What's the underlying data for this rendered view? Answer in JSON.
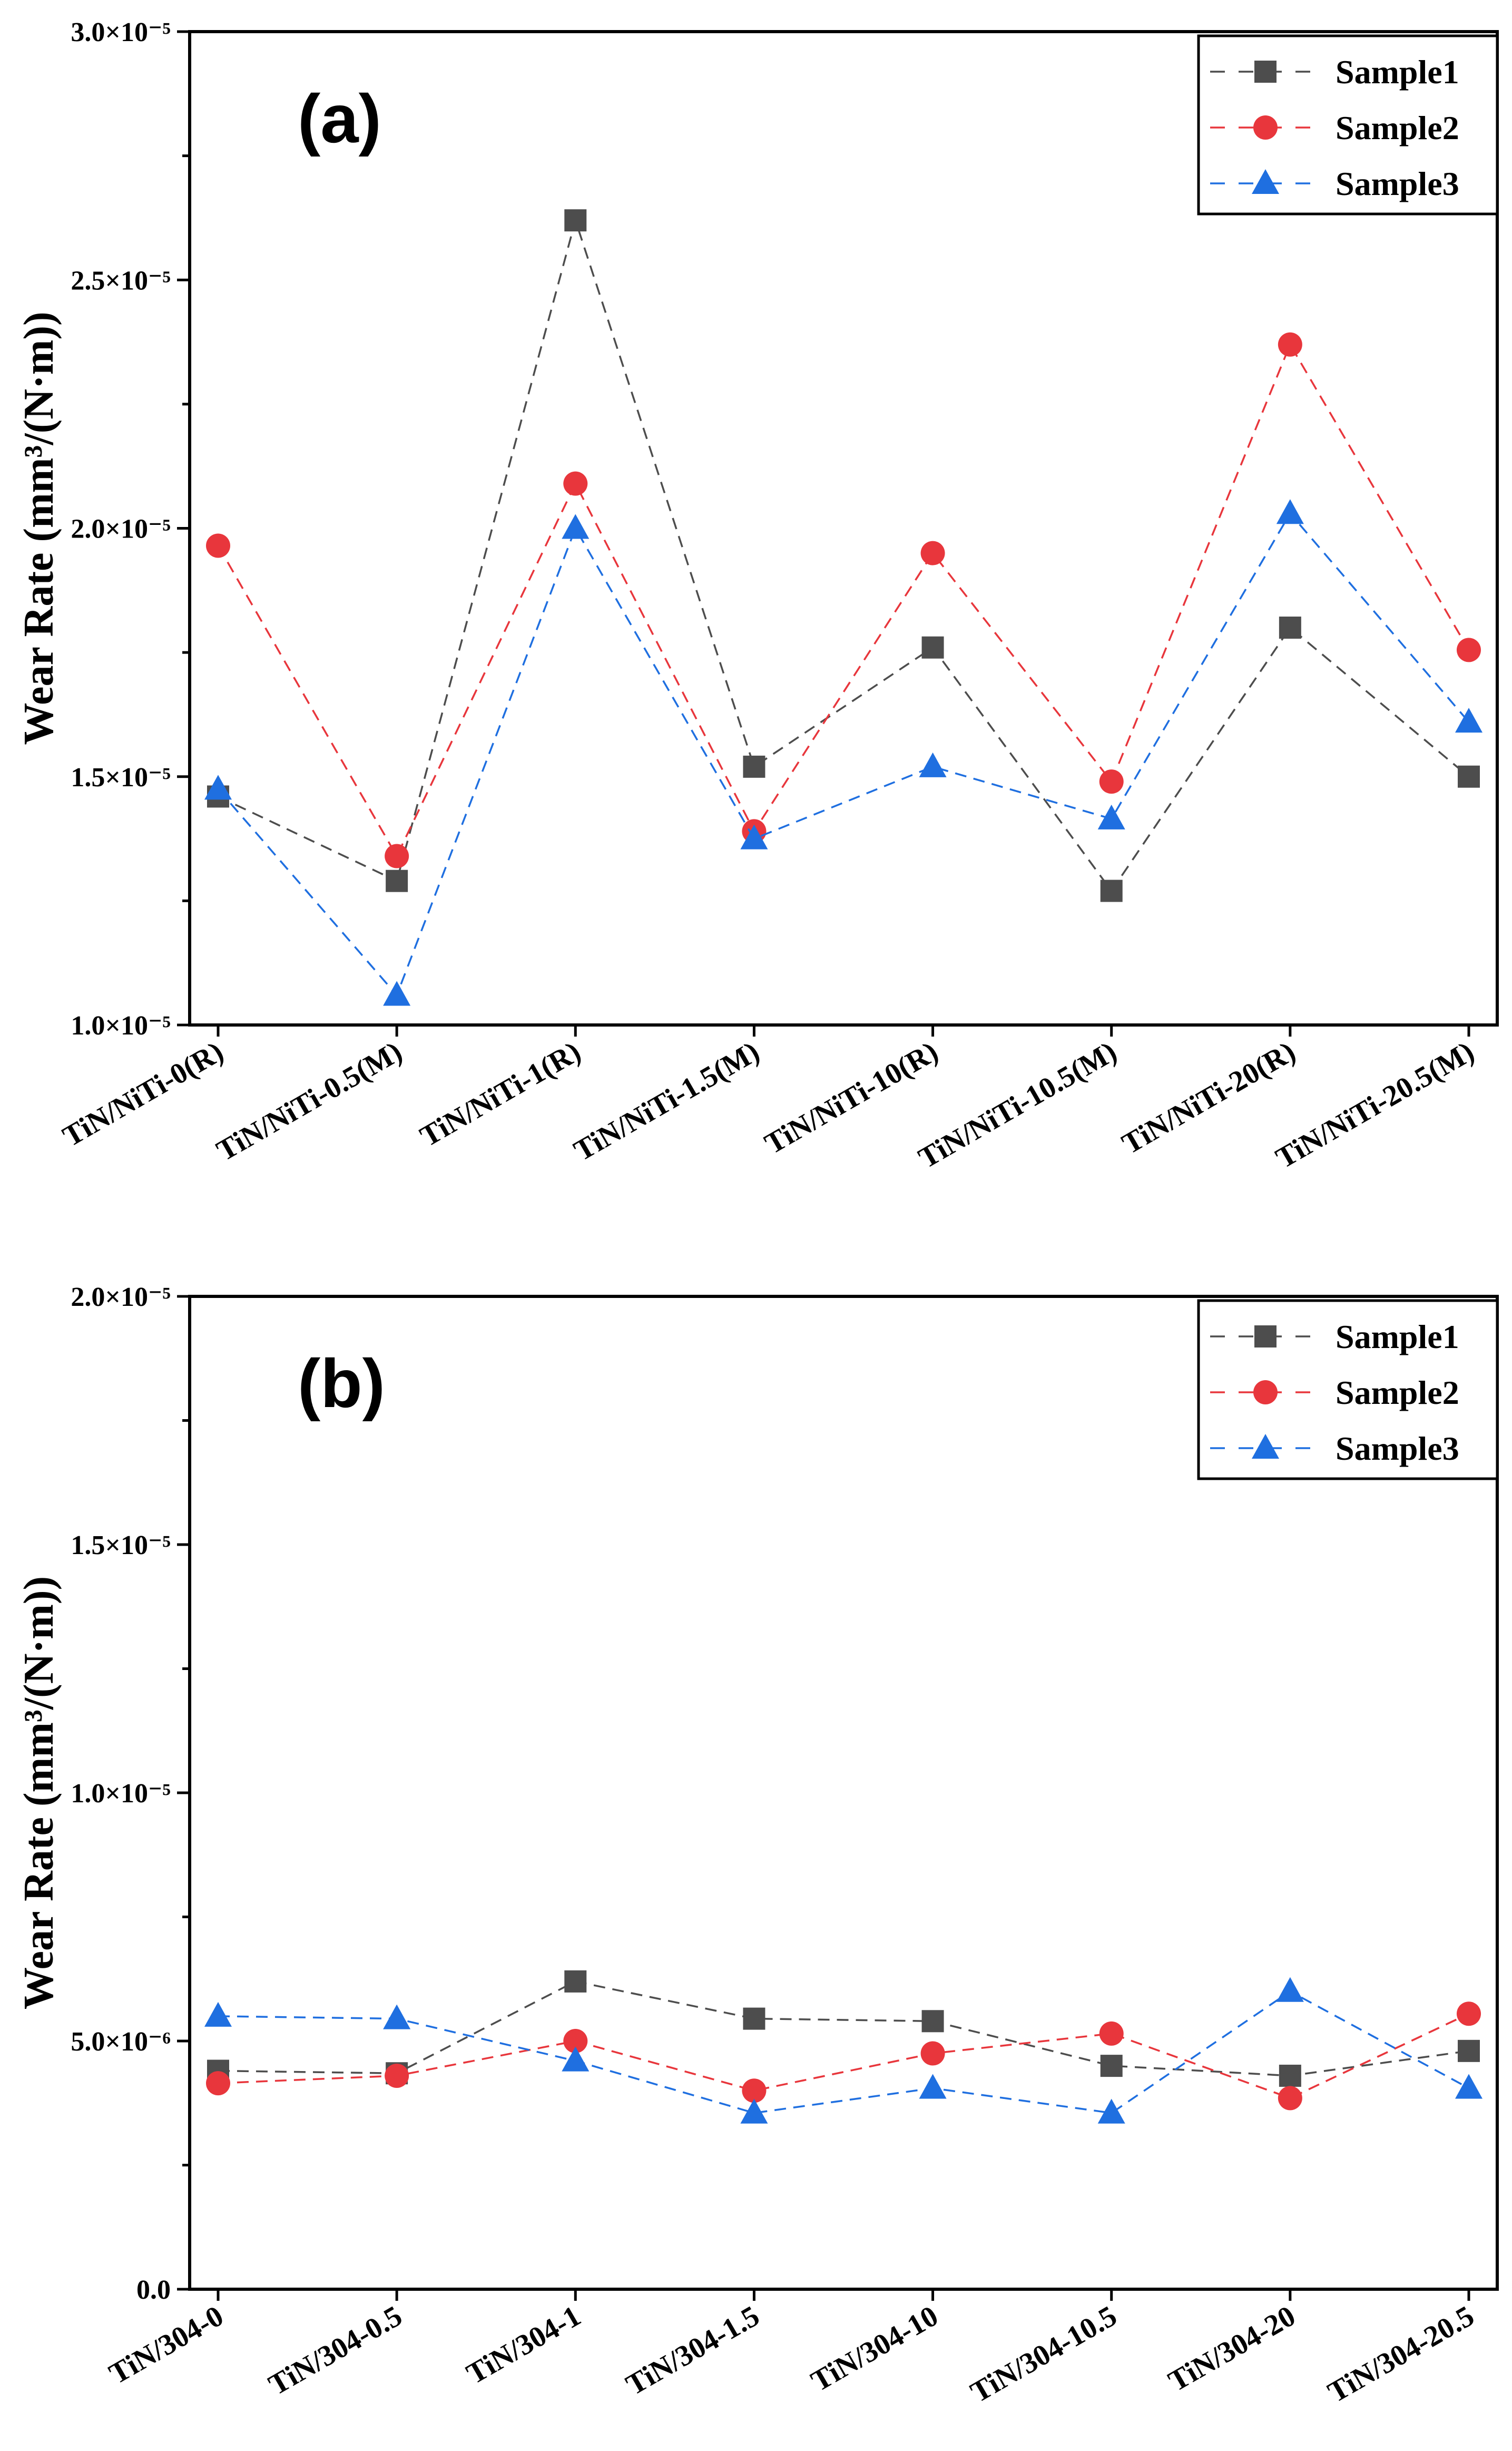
{
  "chart_data": [
    {
      "type": "line",
      "panel_label": "(a)",
      "ylabel": "Wear Rate (mm³/(N·m))",
      "xlabel": "",
      "ylim": [
        1e-05,
        3e-05
      ],
      "yticks": [
        1e-05,
        1.5e-05,
        2e-05,
        2.5e-05,
        3e-05
      ],
      "ytick_labels": [
        "1.0×10⁻⁵",
        "1.5×10⁻⁵",
        "2.0×10⁻⁵",
        "2.5×10⁻⁵",
        "3.0×10⁻⁵"
      ],
      "grid": false,
      "legend_position": "top-right",
      "categories": [
        "TiN/NiTi-0(R)",
        "TiN/NiTi-0.5(M)",
        "TiN/NiTi-1(R)",
        "TiN/NiTi-1.5(M)",
        "TiN/NiTi-10(R)",
        "TiN/NiTi-10.5(M)",
        "TiN/NiTi-20(R)",
        "TiN/NiTi-20.5(M)"
      ],
      "series": [
        {
          "name": "Sample1",
          "color": "#4d4d4d",
          "marker": "square",
          "values": [
            1.46e-05,
            1.29e-05,
            2.62e-05,
            1.52e-05,
            1.76e-05,
            1.27e-05,
            1.8e-05,
            1.5e-05
          ]
        },
        {
          "name": "Sample2",
          "color": "#e8363c",
          "marker": "circle",
          "values": [
            1.965e-05,
            1.34e-05,
            2.09e-05,
            1.39e-05,
            1.95e-05,
            1.49e-05,
            2.37e-05,
            1.755e-05
          ]
        },
        {
          "name": "Sample3",
          "color": "#1f6fe0",
          "marker": "triangle",
          "values": [
            1.475e-05,
            1.06e-05,
            2e-05,
            1.375e-05,
            1.52e-05,
            1.415e-05,
            2.03e-05,
            1.61e-05
          ]
        }
      ]
    },
    {
      "type": "line",
      "panel_label": "(b)",
      "ylabel": "Wear Rate (mm³/(N·m))",
      "xlabel": "",
      "ylim": [
        0,
        2e-05
      ],
      "yticks": [
        0,
        5e-06,
        1e-05,
        1.5e-05,
        2e-05
      ],
      "ytick_labels": [
        "0.0",
        "5.0×10⁻⁶",
        "1.0×10⁻⁵",
        "1.5×10⁻⁵",
        "2.0×10⁻⁵"
      ],
      "grid": false,
      "legend_position": "top-right",
      "categories": [
        "TiN/304-0",
        "TiN/304-0.5",
        "TiN/304-1",
        "TiN/304-1.5",
        "TiN/304-10",
        "TiN/304-10.5",
        "TiN/304-20",
        "TiN/304-20.5"
      ],
      "series": [
        {
          "name": "Sample1",
          "color": "#4d4d4d",
          "marker": "square",
          "values": [
            4.4e-06,
            4.35e-06,
            6.2e-06,
            5.45e-06,
            5.4e-06,
            4.5e-06,
            4.3e-06,
            4.8e-06
          ]
        },
        {
          "name": "Sample2",
          "color": "#e8363c",
          "marker": "circle",
          "values": [
            4.15e-06,
            4.3e-06,
            5e-06,
            4e-06,
            4.75e-06,
            5.15e-06,
            3.85e-06,
            5.55e-06
          ]
        },
        {
          "name": "Sample3",
          "color": "#1f6fe0",
          "marker": "triangle",
          "values": [
            5.5e-06,
            5.45e-06,
            4.6e-06,
            3.55e-06,
            4.05e-06,
            3.55e-06,
            6e-06,
            4.05e-06
          ]
        }
      ]
    }
  ]
}
